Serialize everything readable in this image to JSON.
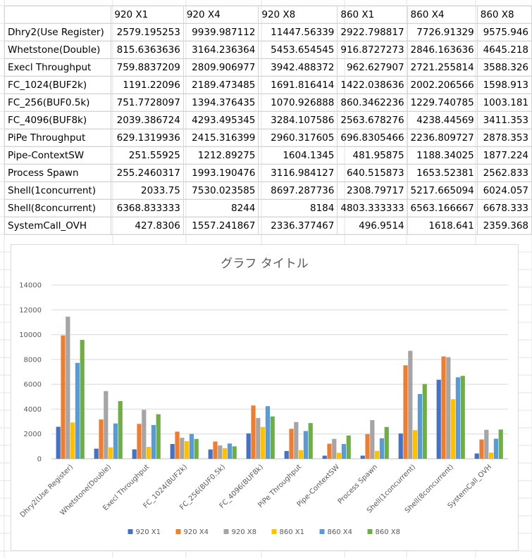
{
  "table": {
    "headers": [
      "",
      "920 X1",
      "920 X4",
      "920 X8",
      "860 X1",
      "860 X4",
      "860 X8"
    ],
    "rows": [
      [
        "Dhry2(Use Register)",
        "2579.195253",
        "9939.987112",
        "11447.56339",
        "2922.798817",
        "7726.91329",
        "9575.946"
      ],
      [
        "Whetstone(Double)",
        "815.6363636",
        "3164.236364",
        "5453.654545",
        "916.8727273",
        "2846.163636",
        "4645.218"
      ],
      [
        "Execl Throughput",
        "759.8837209",
        "2809.906977",
        "3942.488372",
        "962.627907",
        "2721.255814",
        "3588.326"
      ],
      [
        "FC_1024(BUF2k)",
        "1191.22096",
        "2189.473485",
        "1691.816414",
        "1422.038636",
        "2002.206566",
        "1598.913"
      ],
      [
        "FC_256(BUF0.5k)",
        "751.7728097",
        "1394.376435",
        "1070.926888",
        "860.3462236",
        "1229.740785",
        "1003.181"
      ],
      [
        "FC_4096(BUF8k)",
        "2039.386724",
        "4293.495345",
        "3284.107586",
        "2563.678276",
        "4238.44569",
        "3411.353"
      ],
      [
        "PiPe Throughput",
        "629.1319936",
        "2415.316399",
        "2960.317605",
        "696.8305466",
        "2236.809727",
        "2878.353"
      ],
      [
        "Pipe-ContextSW",
        "251.55925",
        "1212.89275",
        "1604.1345",
        "481.95875",
        "1188.34025",
        "1877.224"
      ],
      [
        "Process Spawn",
        "255.2460317",
        "1993.190476",
        "3116.984127",
        "640.515873",
        "1653.52381",
        "2562.833"
      ],
      [
        "Shell(1concurrent)",
        "2033.75",
        "7530.023585",
        "8697.287736",
        "2308.79717",
        "5217.665094",
        "6024.057"
      ],
      [
        "Shell(8concurrent)",
        "6368.833333",
        "8244",
        "8184",
        "4803.333333",
        "6563.166667",
        "6678.333"
      ],
      [
        "SystemCall_OVH",
        "427.8306",
        "1557.241867",
        "2336.377467",
        "496.9514",
        "1618.641",
        "2359.368"
      ]
    ]
  },
  "chart_data": {
    "type": "bar",
    "title": "グラフ タイトル",
    "categories": [
      "Dhry2(Use Register)",
      "Whetstone(Double)",
      "Execl Throughput",
      "FC_1024(BUF2k)",
      "FC_256(BUF0.5k)",
      "FC_4096(BUF8k)",
      "PiPe Throughput",
      "Pipe-ContextSW",
      "Process Spawn",
      "Shell(1concurrent)",
      "Shell(8concurrent)",
      "SystemCall_OVH"
    ],
    "series": [
      {
        "name": "920 X1",
        "color": "#4472C4",
        "values": [
          2579.195253,
          815.6363636,
          759.8837209,
          1191.22096,
          751.7728097,
          2039.386724,
          629.1319936,
          251.55925,
          255.2460317,
          2033.75,
          6368.833333,
          427.8306
        ]
      },
      {
        "name": "920 X4",
        "color": "#ED7D31",
        "values": [
          9939.987112,
          3164.236364,
          2809.906977,
          2189.473485,
          1394.376435,
          4293.495345,
          2415.316399,
          1212.89275,
          1993.190476,
          7530.023585,
          8244,
          1557.241867
        ]
      },
      {
        "name": "920 X8",
        "color": "#A5A5A5",
        "values": [
          11447.56339,
          5453.654545,
          3942.488372,
          1691.816414,
          1070.926888,
          3284.107586,
          2960.317605,
          1604.1345,
          3116.984127,
          8697.287736,
          8184,
          2336.377467
        ]
      },
      {
        "name": "860 X1",
        "color": "#FFC000",
        "values": [
          2922.798817,
          916.8727273,
          962.627907,
          1422.038636,
          860.3462236,
          2563.678276,
          696.8305466,
          481.95875,
          640.515873,
          2308.79717,
          4803.333333,
          496.9514
        ]
      },
      {
        "name": "860 X4",
        "color": "#5B9BD5",
        "values": [
          7726.91329,
          2846.163636,
          2721.255814,
          2002.206566,
          1229.740785,
          4238.44569,
          2236.809727,
          1188.34025,
          1653.52381,
          5217.665094,
          6563.166667,
          1618.641
        ]
      },
      {
        "name": "860 X8",
        "color": "#70AD47",
        "values": [
          9575.946,
          4645.218,
          3588.326,
          1598.913,
          1003.181,
          3411.353,
          2878.353,
          1877.224,
          2562.833,
          6024.057,
          6678.333,
          2359.368
        ]
      }
    ],
    "ylim": [
      0,
      14000
    ],
    "yticks": [
      0,
      2000,
      4000,
      6000,
      8000,
      10000,
      12000,
      14000
    ],
    "grid": true,
    "legend_position": "bottom"
  }
}
